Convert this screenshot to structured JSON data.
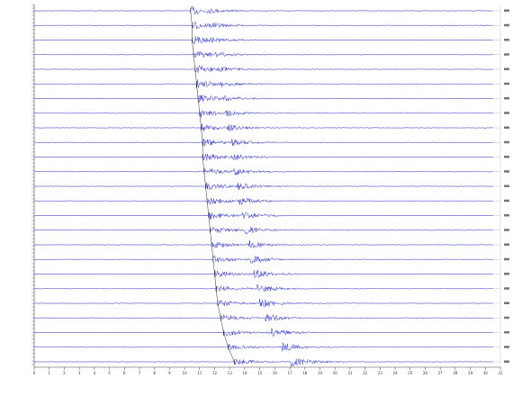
{
  "chart_data": {
    "type": "record-section",
    "xlim": [
      0,
      31
    ],
    "xticks": [
      0,
      1,
      2,
      3,
      4,
      5,
      6,
      7,
      8,
      9,
      10,
      11,
      12,
      13,
      14,
      15,
      16,
      17,
      18,
      19,
      20,
      21,
      22,
      23,
      24,
      25,
      26,
      27,
      28,
      29,
      30,
      31
    ],
    "color": "#1a1ad8",
    "arrivals": [
      10.4,
      10.5,
      10.5,
      10.6,
      10.7,
      10.8,
      10.9,
      11.0,
      11.1,
      11.2,
      11.2,
      11.3,
      11.4,
      11.5,
      11.6,
      11.7,
      11.8,
      11.9,
      12.0,
      12.1,
      12.2,
      12.4,
      12.6,
      12.9,
      13.3
    ]
  }
}
